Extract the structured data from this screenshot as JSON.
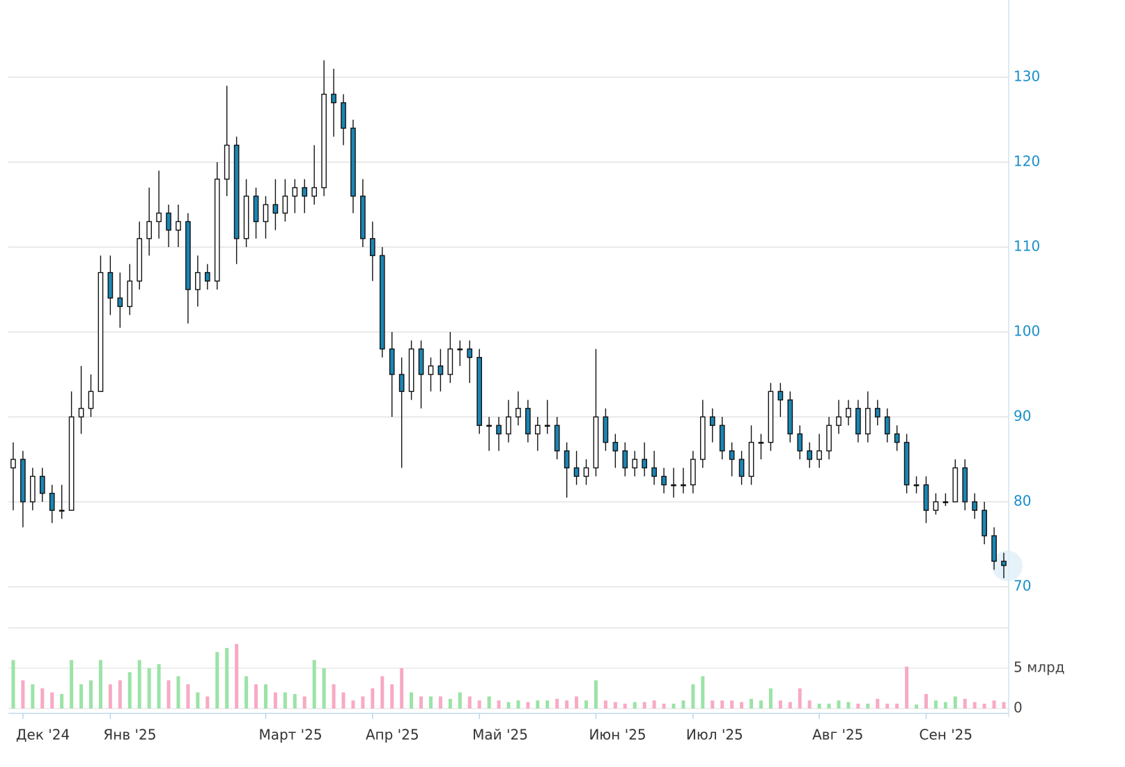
{
  "chart_data": {
    "type": "candlestick",
    "categories": [
      null,
      "Дек '24",
      null,
      null,
      null,
      null,
      null,
      null,
      null,
      null,
      "Янв '25",
      null,
      null,
      null,
      null,
      null,
      null,
      null,
      null,
      null,
      null,
      null,
      null,
      null,
      null,
      null,
      "Март '25",
      null,
      null,
      null,
      null,
      null,
      null,
      null,
      null,
      null,
      null,
      "Апр '25",
      null,
      null,
      null,
      null,
      null,
      null,
      null,
      null,
      null,
      null,
      "Май '25",
      null,
      null,
      null,
      null,
      null,
      null,
      null,
      null,
      null,
      null,
      null,
      "Июн '25",
      null,
      null,
      null,
      null,
      null,
      null,
      null,
      null,
      null,
      "Июл '25",
      null,
      null,
      null,
      null,
      null,
      null,
      null,
      null,
      null,
      null,
      null,
      null,
      "Авг '25",
      null,
      null,
      null,
      null,
      null,
      null,
      null,
      null,
      null,
      null,
      "Сен '25",
      null,
      null,
      null,
      null,
      null,
      null,
      null,
      null
    ],
    "open": [
      84,
      85,
      80,
      83,
      81,
      79,
      79,
      90,
      91,
      93,
      107,
      104,
      103,
      106,
      111,
      113,
      114,
      112,
      113,
      105,
      107,
      106,
      118,
      122,
      111,
      116,
      113,
      115,
      114,
      116,
      117,
      116,
      117,
      128,
      127,
      124,
      116,
      111,
      109,
      98,
      95,
      93,
      98,
      95,
      96,
      95,
      98,
      98,
      97,
      89,
      89,
      88,
      90,
      91,
      88,
      89,
      89,
      86,
      84,
      83,
      84,
      90,
      87,
      86,
      84,
      85,
      84,
      83,
      82,
      82,
      82,
      85,
      90,
      89,
      86,
      85,
      83,
      87,
      87,
      93,
      92,
      88,
      86,
      85,
      86,
      89,
      90,
      91,
      88,
      91,
      90,
      88,
      87,
      82,
      82,
      79,
      80,
      80,
      84,
      80,
      79,
      76,
      73
    ],
    "high": [
      87,
      86,
      84,
      84,
      82,
      82,
      93,
      96,
      95,
      109,
      109,
      107,
      108,
      113,
      117,
      119,
      115,
      115,
      114,
      109,
      108,
      120,
      129,
      123,
      118,
      117,
      116,
      118,
      118,
      118,
      118,
      122,
      132,
      131,
      128,
      125,
      118,
      113,
      110,
      100,
      97,
      99,
      99,
      97,
      98,
      100,
      99,
      99,
      98,
      90,
      90,
      92,
      93,
      92,
      90,
      92,
      90,
      87,
      86,
      85,
      98,
      91,
      88,
      87,
      86,
      87,
      86,
      84,
      84,
      84,
      86,
      92,
      91,
      90,
      87,
      86,
      89,
      88,
      94,
      94,
      93,
      89,
      87,
      88,
      90,
      92,
      92,
      92,
      93,
      92,
      91,
      89,
      88,
      83,
      83,
      81,
      81,
      85,
      85,
      81,
      80,
      77,
      74
    ],
    "low": [
      79,
      77,
      79,
      80,
      77.5,
      78,
      79,
      88,
      90,
      93,
      102,
      100.5,
      102,
      105,
      109,
      111,
      110,
      110,
      101,
      103,
      105,
      105,
      116,
      108,
      110,
      111,
      111,
      112,
      113,
      114,
      114,
      115,
      116,
      123,
      122,
      114,
      110,
      106,
      97,
      90,
      84,
      92,
      91,
      93,
      93,
      94,
      96,
      94,
      88,
      86,
      86,
      87,
      89,
      87,
      86,
      88,
      85,
      80.5,
      82,
      82,
      83,
      86,
      84,
      83,
      83,
      83,
      82,
      81,
      80.5,
      81,
      81,
      84,
      87,
      85,
      83,
      82,
      82,
      85,
      86,
      90,
      87,
      85,
      84,
      84,
      85,
      88,
      89,
      87,
      87,
      89,
      87,
      86,
      81,
      81,
      77.5,
      78.5,
      79.5,
      80,
      79,
      78,
      75,
      72,
      71
    ],
    "close": [
      85,
      80,
      83,
      81,
      79,
      79,
      90,
      91,
      93,
      107,
      104,
      103,
      106,
      111,
      113,
      114,
      112,
      113,
      105,
      107,
      106,
      118,
      122,
      111,
      116,
      113,
      115,
      114,
      116,
      117,
      116,
      117,
      128,
      127,
      124,
      116,
      111,
      109,
      98,
      95,
      93,
      98,
      95,
      96,
      95,
      98,
      98,
      97,
      89,
      89,
      88,
      90,
      91,
      88,
      89,
      89,
      86,
      84,
      83,
      84,
      90,
      87,
      86,
      84,
      85,
      84,
      83,
      82,
      82,
      82,
      85,
      90,
      89,
      86,
      85,
      83,
      87,
      87,
      93,
      92,
      88,
      86,
      85,
      86,
      89,
      90,
      91,
      88,
      91,
      90,
      88,
      87,
      82,
      82,
      79,
      80,
      80,
      84,
      80,
      79,
      76,
      73,
      72.5
    ],
    "up_color": "#ffffff",
    "down_color": "#1b86b3",
    "ylim": [
      68,
      139
    ],
    "yticks": [
      70,
      80,
      90,
      100,
      110,
      120,
      130
    ],
    "grid": true,
    "volume": {
      "values": [
        6,
        3.5,
        3,
        2.5,
        2,
        1.8,
        6,
        3,
        3.5,
        6,
        3,
        3.5,
        4.5,
        6,
        5,
        5.5,
        3.5,
        4,
        3,
        2,
        1.5,
        7,
        7.5,
        8,
        4,
        3,
        3,
        2,
        2,
        1.8,
        1.5,
        6,
        5,
        3,
        2,
        1,
        1.5,
        2.5,
        4,
        3,
        5,
        2,
        1.5,
        1.5,
        1.5,
        1.2,
        2,
        1.5,
        1,
        1.5,
        1,
        0.8,
        1,
        0.8,
        1,
        1,
        1.2,
        1,
        1.5,
        1,
        3.5,
        1,
        0.8,
        0.6,
        0.8,
        0.8,
        1,
        0.6,
        0.6,
        1,
        3,
        4,
        1,
        1,
        1,
        0.8,
        1.2,
        1,
        2.5,
        1,
        0.8,
        2.5,
        1,
        0.6,
        0.6,
        1,
        0.8,
        0.6,
        0.6,
        1.2,
        0.6,
        0.6,
        5.2,
        0.5,
        1.8,
        1,
        0.8,
        1.5,
        1.2,
        0.8,
        0.6,
        1,
        0.8
      ],
      "up_color": "#9be3a7",
      "down_color": "#f7aac4",
      "ylim": [
        0,
        10
      ],
      "yticks": [
        0,
        {
          "value": 5,
          "label": "5 млрд"
        }
      ]
    }
  }
}
